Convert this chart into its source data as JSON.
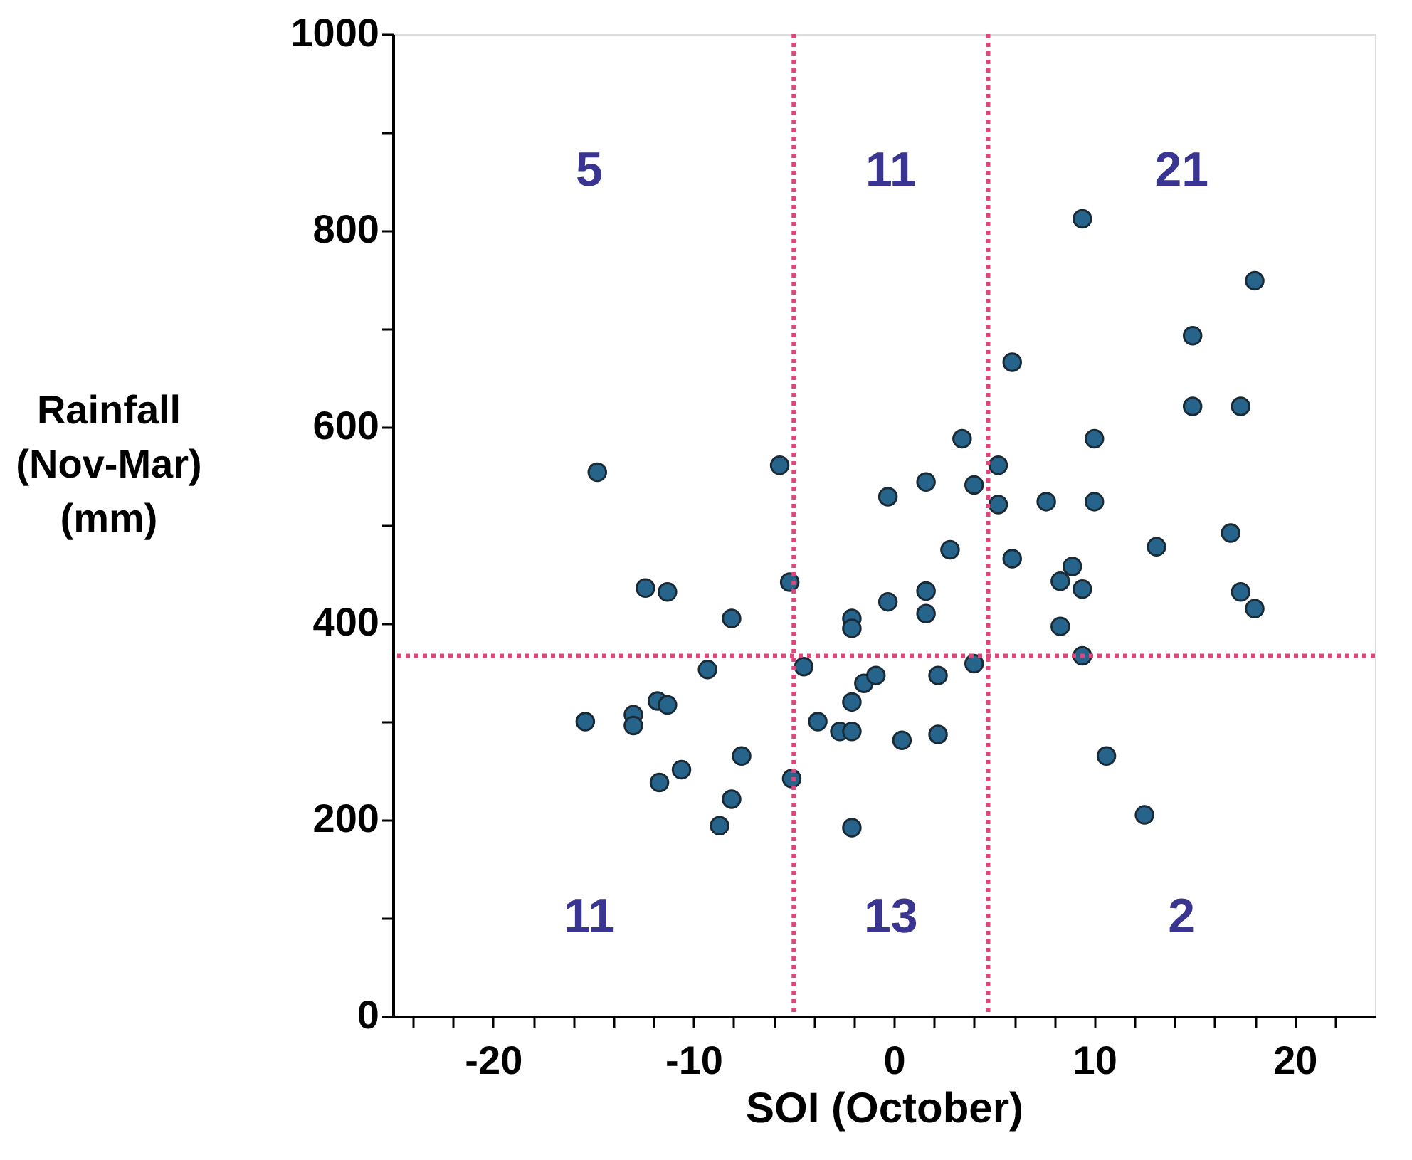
{
  "chart_data": {
    "type": "scatter",
    "xlabel": "SOI (October)",
    "ylabel": "Rainfall\n(Nov-Mar)\n(mm)",
    "x": [
      -14.8,
      -15.4,
      -12.4,
      -11.3,
      -13.0,
      -13.0,
      -11.8,
      -11.3,
      -11.7,
      -10.6,
      -9.3,
      -8.1,
      -7.6,
      -8.1,
      -8.7,
      -5.7,
      -5.2,
      -5.1,
      -4.5,
      -3.8,
      -2.1,
      -2.1,
      -2.1,
      -2.7,
      -2.1,
      -2.1,
      -1.5,
      -0.9,
      -0.3,
      -0.3,
      0.4,
      1.6,
      1.6,
      1.6,
      2.2,
      2.2,
      2.8,
      3.4,
      4.0,
      4.0,
      5.2,
      5.2,
      9.4,
      18.0,
      14.9,
      5.9,
      14.9,
      17.3,
      10.0,
      7.6,
      5.9,
      13.1,
      16.8,
      8.9,
      8.3,
      9.4,
      17.3,
      18.0,
      8.3,
      10.0,
      9.4,
      10.6,
      12.5
    ],
    "values": [
      554,
      300,
      436,
      432,
      307,
      296,
      321,
      317,
      238,
      251,
      353,
      405,
      265,
      221,
      194,
      561,
      442,
      242,
      356,
      300,
      405,
      395,
      320,
      290,
      290,
      192,
      339,
      347,
      529,
      422,
      281,
      544,
      433,
      410,
      347,
      287,
      475,
      588,
      541,
      359,
      561,
      521,
      812,
      749,
      693,
      666,
      621,
      621,
      588,
      524,
      466,
      478,
      492,
      458,
      443,
      435,
      432,
      415,
      397,
      524,
      367,
      265,
      205
    ],
    "color": "#26648c",
    "marker": "circle",
    "xlim": [
      -25,
      24
    ],
    "ylim": [
      0,
      1000
    ],
    "xticks": [
      {
        "value": -24,
        "label": null
      },
      {
        "value": -22,
        "label": null
      },
      -20,
      {
        "value": -18,
        "label": null
      },
      {
        "value": -16,
        "label": null
      },
      {
        "value": -14,
        "label": null
      },
      {
        "value": -12,
        "label": null
      },
      -10,
      {
        "value": -8,
        "label": null
      },
      {
        "value": -6,
        "label": null
      },
      {
        "value": -4,
        "label": null
      },
      {
        "value": -2,
        "label": null
      },
      0,
      {
        "value": 2,
        "label": null
      },
      {
        "value": 4,
        "label": null
      },
      {
        "value": 6,
        "label": null
      },
      {
        "value": 8,
        "label": null
      },
      10,
      {
        "value": 12,
        "label": null
      },
      {
        "value": 14,
        "label": null
      },
      {
        "value": 16,
        "label": null
      },
      {
        "value": 18,
        "label": null
      },
      20,
      {
        "value": 22,
        "label": null
      }
    ],
    "yticks": [
      0,
      {
        "value": 100,
        "label": null
      },
      200,
      {
        "value": 300,
        "label": null
      },
      400,
      {
        "value": 500,
        "label": null
      },
      600,
      {
        "value": 700,
        "label": null
      },
      800,
      {
        "value": 900,
        "label": null
      },
      1000
    ],
    "grid": false,
    "ref_lines": [
      {
        "axis": "x",
        "value": -5,
        "color": "#e0457b",
        "line_style": "dotted"
      },
      {
        "axis": "x",
        "value": 4.7,
        "color": "#e0457b",
        "line_style": "dotted"
      },
      {
        "axis": "y",
        "value": 367,
        "color": "#e0457b",
        "line_style": "dotted"
      }
    ],
    "annotations": [
      "5",
      "11",
      "21",
      "11",
      "13",
      "2"
    ]
  }
}
